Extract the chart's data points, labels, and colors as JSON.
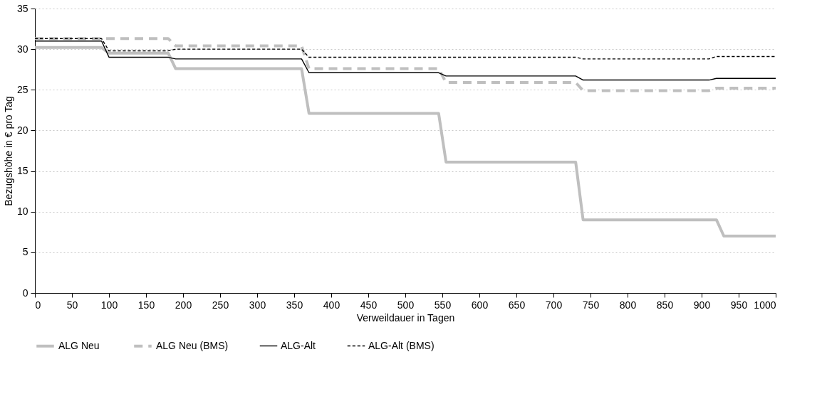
{
  "chart_data": {
    "type": "line",
    "xlabel": "Verweildauer in Tagen",
    "ylabel": "Bezugshöhe in € pro Tag",
    "xlim": [
      0,
      1000
    ],
    "xticks": [
      0,
      50,
      100,
      150,
      200,
      250,
      300,
      350,
      400,
      450,
      500,
      550,
      600,
      650,
      700,
      750,
      800,
      850,
      900,
      950,
      1000
    ],
    "ylim": [
      0,
      35
    ],
    "yticks": [
      0,
      5,
      10,
      15,
      20,
      25,
      30,
      35
    ],
    "grid": "y",
    "legend": "bottom",
    "marker": "none",
    "series": [
      {
        "name": "ALG Neu",
        "color": "#bfbfbf",
        "line_style": "solid",
        "x": [
          0,
          90,
          100,
          180,
          190,
          360,
          370,
          545,
          555,
          730,
          740,
          920,
          930,
          1000
        ],
        "values": [
          30.2,
          30.2,
          29.5,
          29.5,
          27.6,
          27.6,
          22.1,
          22.1,
          16.1,
          16.1,
          9.0,
          9.0,
          7.0,
          7.0
        ]
      },
      {
        "name": "ALG Neu (BMS)",
        "color": "#bfbfbf",
        "line_style": "dashed",
        "x": [
          0,
          180,
          190,
          360,
          370,
          545,
          555,
          730,
          740,
          910,
          920,
          1000
        ],
        "values": [
          31.3,
          31.3,
          30.4,
          30.4,
          27.6,
          27.6,
          25.9,
          25.9,
          24.9,
          24.9,
          25.2,
          25.2
        ]
      },
      {
        "name": "ALG-Alt",
        "color": "#000000",
        "line_style": "solid",
        "x": [
          0,
          90,
          100,
          180,
          190,
          360,
          370,
          545,
          555,
          730,
          740,
          910,
          920,
          1000
        ],
        "values": [
          31.0,
          31.0,
          29.0,
          29.0,
          28.8,
          28.8,
          27.1,
          27.1,
          26.7,
          26.7,
          26.2,
          26.2,
          26.4,
          26.4
        ]
      },
      {
        "name": "ALG-Alt (BMS)",
        "color": "#000000",
        "line_style": "dashed",
        "x": [
          0,
          90,
          100,
          180,
          190,
          360,
          370,
          730,
          740,
          910,
          920,
          1000
        ],
        "values": [
          31.3,
          31.3,
          29.8,
          29.8,
          30.0,
          30.0,
          29.0,
          29.0,
          28.8,
          28.8,
          29.1,
          29.1
        ]
      }
    ]
  }
}
